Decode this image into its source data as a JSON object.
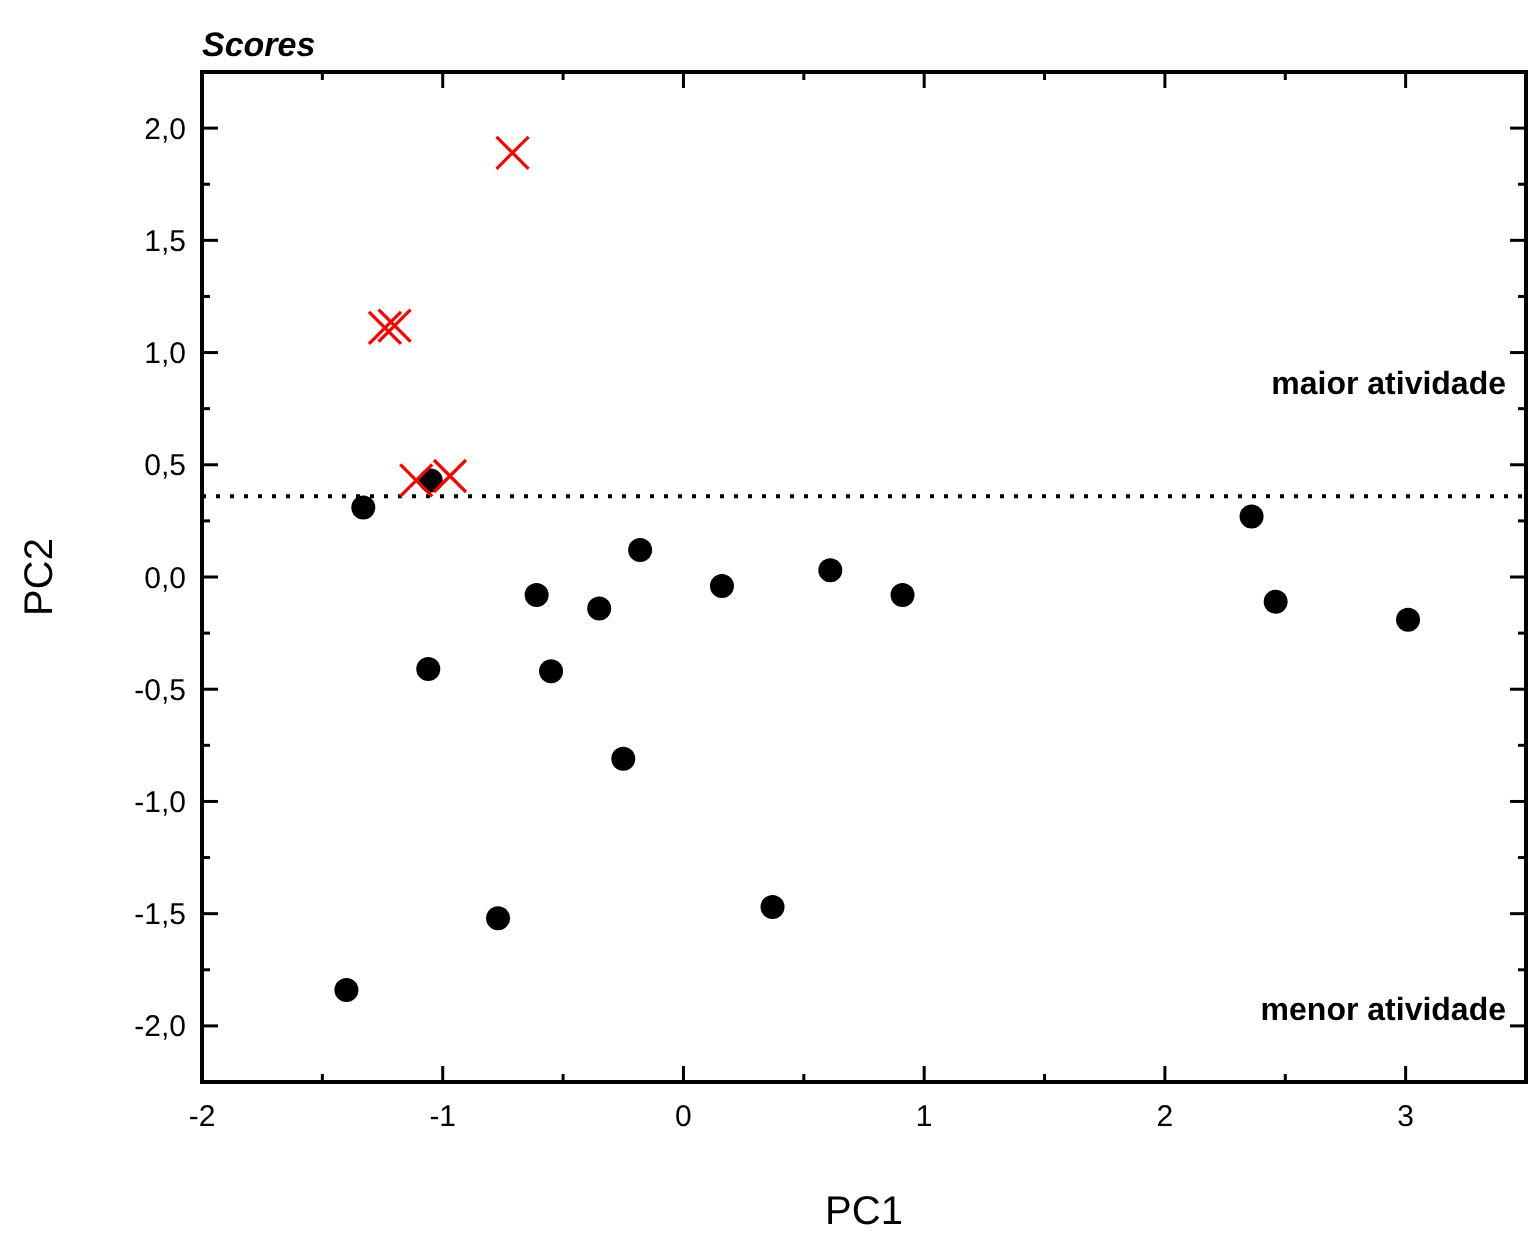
{
  "chart_data": {
    "type": "scatter",
    "title": "Scores",
    "xlabel": "PC1",
    "ylabel": "PC2",
    "xlim": [
      -2,
      3.5
    ],
    "ylim": [
      -2.25,
      2.25
    ],
    "xticks": [
      -2,
      {
        "value": -1.5,
        "label": null
      },
      -1,
      {
        "value": -0.5,
        "label": null
      },
      0,
      {
        "value": 0.5,
        "label": null
      },
      1,
      {
        "value": 1.5,
        "label": null
      },
      2,
      {
        "value": 2.5,
        "label": null
      },
      3
    ],
    "yticks": [
      {
        "value": -2,
        "label": "-2,0"
      },
      {
        "value": -1.75,
        "label": null
      },
      {
        "value": -1.5,
        "label": "-1,5"
      },
      {
        "value": -1.25,
        "label": null
      },
      {
        "value": -1,
        "label": "-1,0"
      },
      {
        "value": -0.75,
        "label": null
      },
      {
        "value": -0.5,
        "label": "-0,5"
      },
      {
        "value": -0.25,
        "label": null
      },
      {
        "value": 0,
        "label": "0,0"
      },
      {
        "value": 0.25,
        "label": null
      },
      {
        "value": 0.5,
        "label": "0,5"
      },
      {
        "value": 0.75,
        "label": null
      },
      {
        "value": 1,
        "label": "1,0"
      },
      {
        "value": 1.25,
        "label": null
      },
      {
        "value": 1.5,
        "label": "1,5"
      },
      {
        "value": 1.75,
        "label": null
      },
      {
        "value": 2,
        "label": "2,0"
      }
    ],
    "ref_lines": [
      {
        "axis": "y",
        "value": 0.36,
        "color": "#000000",
        "line_style": "dotted"
      }
    ],
    "annotations": [
      "maior atividade",
      "menor atividade"
    ],
    "series": [
      {
        "color": "#000000",
        "marker": "circle",
        "x": [
          -1.33,
          -1.05,
          -0.61,
          -0.35,
          -0.18,
          0.16,
          0.61,
          0.91,
          -1.06,
          -0.55,
          -0.25,
          -0.77,
          0.37,
          -1.4,
          2.36,
          2.46,
          3.01
        ],
        "values": [
          0.31,
          0.43,
          -0.08,
          -0.14,
          0.12,
          -0.04,
          0.03,
          -0.08,
          -0.41,
          -0.42,
          -0.81,
          -1.52,
          -1.47,
          -1.84,
          0.27,
          -0.11,
          -0.19
        ]
      },
      {
        "color": "#ff0000",
        "marker": "cross",
        "x": [
          -0.71,
          -1.24,
          -1.2,
          -1.11,
          -0.97
        ],
        "values": [
          1.89,
          1.11,
          1.12,
          0.43,
          0.45
        ]
      }
    ]
  }
}
